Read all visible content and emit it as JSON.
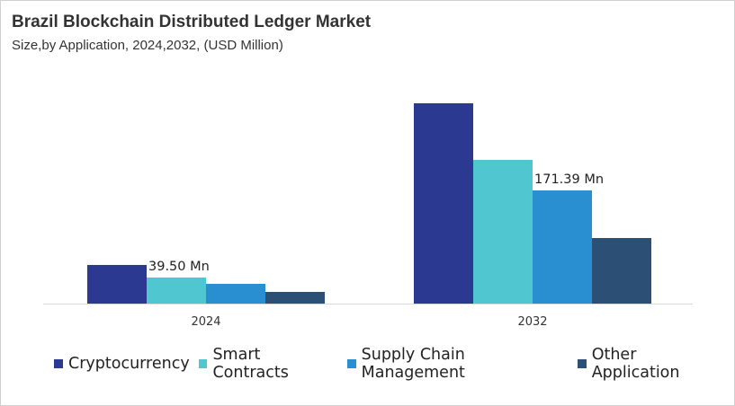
{
  "chart_data": {
    "type": "bar",
    "title": "Brazil Blockchain Distributed Ledger Market",
    "subtitle": "Size,by Application, 2024,2032, (USD Million)",
    "categories": [
      "2024",
      "2032"
    ],
    "series": [
      {
        "name": "Cryptocurrency",
        "color": "#2b3990",
        "values": [
          58.5,
          303.3
        ]
      },
      {
        "name": "Smart Contracts",
        "color": "#4fc6d0",
        "values": [
          39.5,
          217.6
        ]
      },
      {
        "name": "Supply Chain Management",
        "color": "#2a8fd0",
        "values": [
          29.9,
          171.39
        ]
      },
      {
        "name": "Other Application",
        "color": "#2c4f75",
        "values": [
          17.7,
          99.3
        ]
      }
    ],
    "data_labels": [
      {
        "series": 1,
        "category": 0,
        "text": "39.50 Mn"
      },
      {
        "series": 2,
        "category": 1,
        "text": "171.39 Mn"
      }
    ],
    "ylim": [
      0,
      320
    ],
    "grid": false,
    "legend": "bottom"
  }
}
